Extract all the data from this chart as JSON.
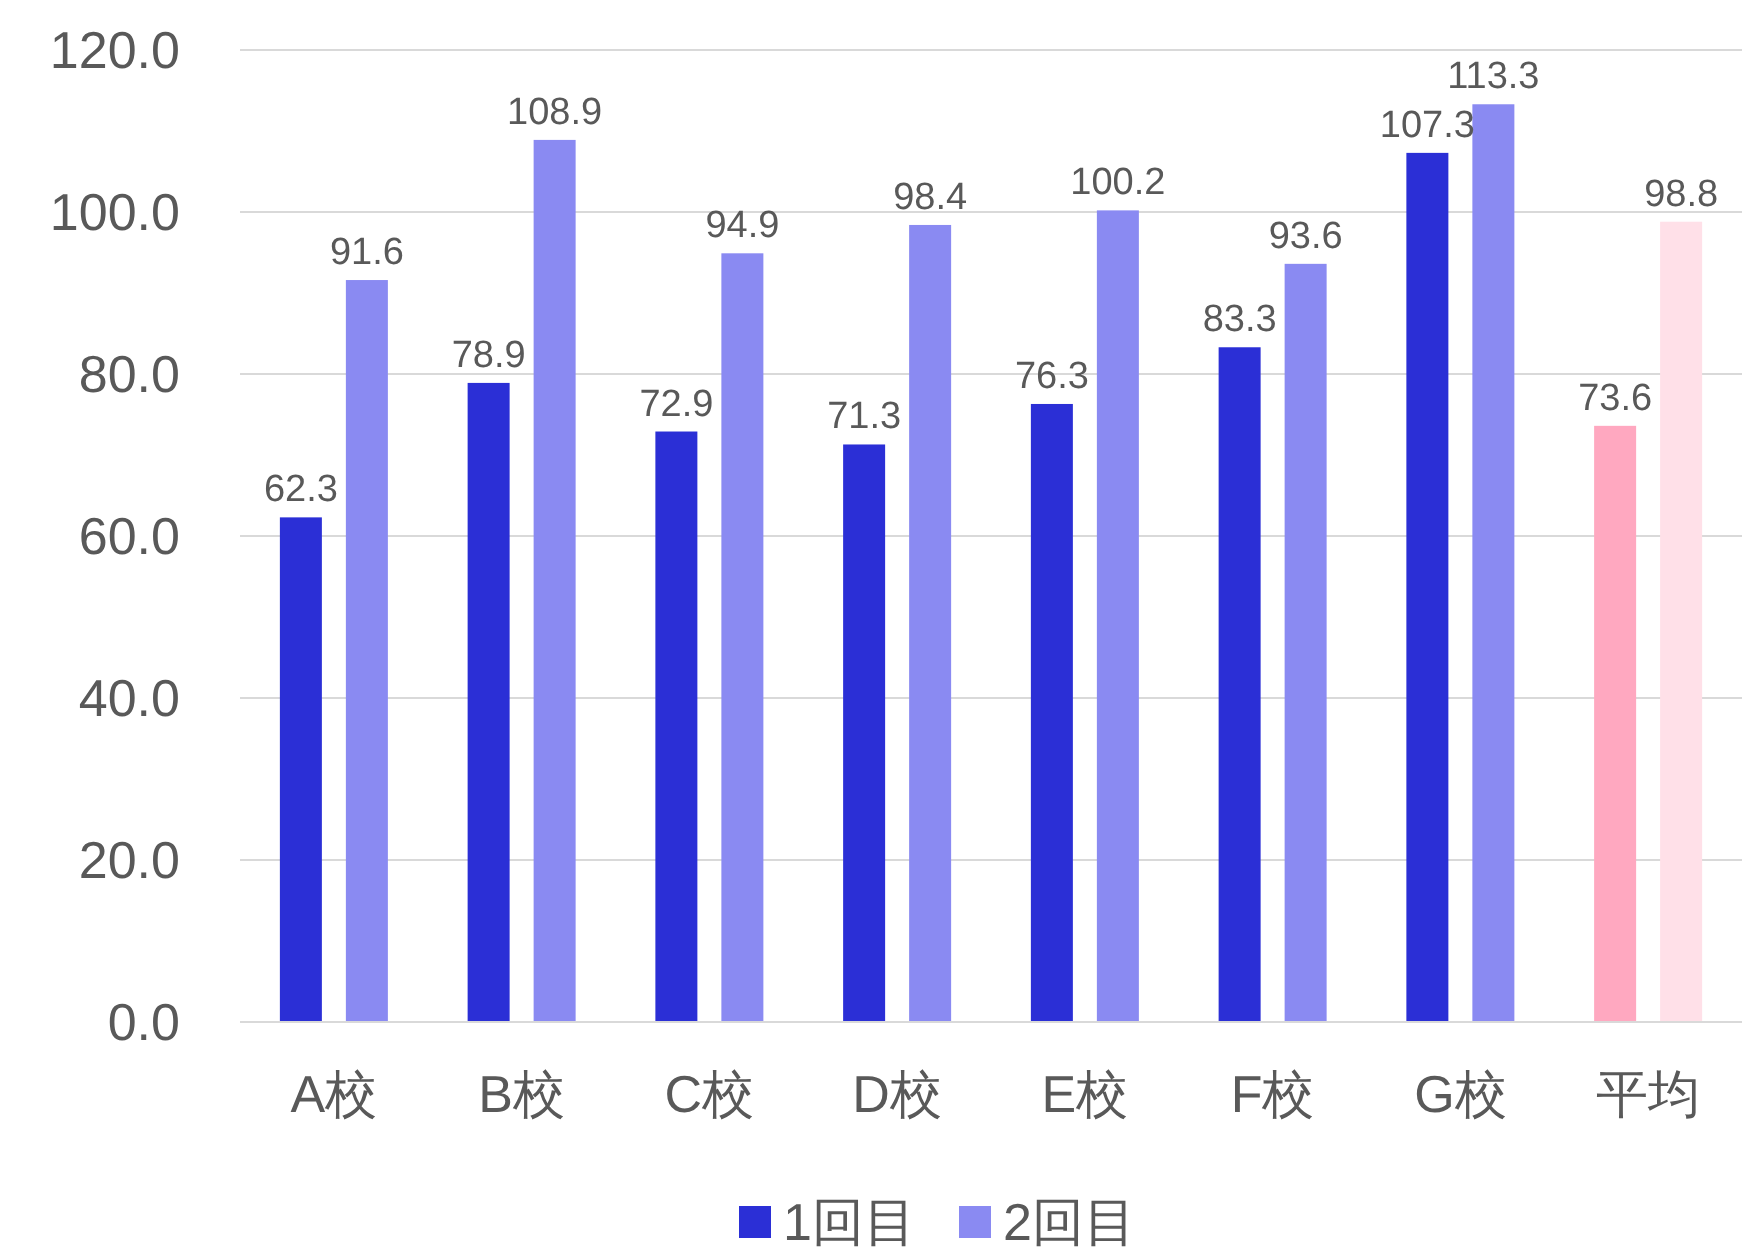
{
  "chart_data": {
    "type": "bar",
    "categories": [
      "A校",
      "B校",
      "C校",
      "D校",
      "E校",
      "F校",
      "G校",
      "平均"
    ],
    "series": [
      {
        "name": "1回目",
        "color": "#2b2fd6",
        "colors": [
          "#2b2fd6",
          "#2b2fd6",
          "#2b2fd6",
          "#2b2fd6",
          "#2b2fd6",
          "#2b2fd6",
          "#2b2fd6",
          "#ffa8c0"
        ],
        "values": [
          62.3,
          78.9,
          72.9,
          71.3,
          76.3,
          83.3,
          107.3,
          73.6
        ]
      },
      {
        "name": "2回目",
        "color": "#8a8af2",
        "colors": [
          "#8a8af2",
          "#8a8af2",
          "#8a8af2",
          "#8a8af2",
          "#8a8af2",
          "#8a8af2",
          "#8a8af2",
          "#ffe0e8"
        ],
        "values": [
          91.6,
          108.9,
          94.9,
          98.4,
          100.2,
          93.6,
          113.3,
          98.8
        ]
      }
    ],
    "ylim": [
      0,
      120
    ],
    "yticks": [
      {
        "value": 0,
        "label": "0.0"
      },
      {
        "value": 20,
        "label": "20.0"
      },
      {
        "value": 40,
        "label": "40.0"
      },
      {
        "value": 60,
        "label": "60.0"
      },
      {
        "value": 80,
        "label": "80.0"
      },
      {
        "value": 100,
        "label": "100.0"
      },
      {
        "value": 120,
        "label": "120.0"
      }
    ],
    "grid": "y",
    "legend": "bottom",
    "data_labels": true
  }
}
